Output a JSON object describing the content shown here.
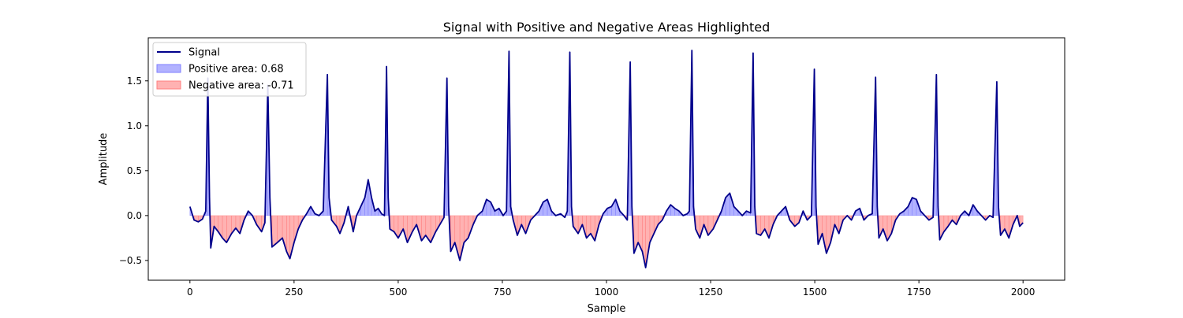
{
  "chart_data": {
    "type": "area",
    "title": "Signal with Positive and Negative Areas Highlighted",
    "xlabel": "Sample",
    "ylabel": "Amplitude",
    "xlim": [
      -100,
      2100
    ],
    "ylim": [
      -0.72,
      1.98
    ],
    "xticks": [
      0,
      250,
      500,
      750,
      1000,
      1250,
      1500,
      1750,
      2000
    ],
    "xtick_labels": [
      "0",
      "250",
      "500",
      "750",
      "1000",
      "1250",
      "1500",
      "1750",
      "2000"
    ],
    "yticks": [
      -0.5,
      0.0,
      0.5,
      1.0,
      1.5
    ],
    "ytick_labels": [
      "−0.5",
      "0.0",
      "0.5",
      "1.0",
      "1.5"
    ],
    "grid": false,
    "legend": {
      "location": "upper left",
      "entries": [
        {
          "label": "Signal",
          "kind": "line",
          "color": "#00008b"
        },
        {
          "label": "Positive area: 0.68",
          "kind": "patch",
          "fill": "#b2b2ff",
          "edge": "#7f7fff"
        },
        {
          "label": "Negative area: -0.71",
          "kind": "patch",
          "fill": "#ffb2b2",
          "edge": "#ff7f7f"
        }
      ]
    },
    "colors": {
      "signal": "#00008b",
      "positive_fill": "#0000ff",
      "negative_fill": "#ff0000",
      "fill_alpha": 0.3
    },
    "series": [
      {
        "name": "Signal",
        "peaks": [
          {
            "x": 43,
            "y": 1.53
          },
          {
            "x": 187,
            "y": 1.45
          },
          {
            "x": 330,
            "y": 1.57
          },
          {
            "x": 472,
            "y": 1.66
          },
          {
            "x": 617,
            "y": 1.53
          },
          {
            "x": 766,
            "y": 1.83
          },
          {
            "x": 912,
            "y": 1.82
          },
          {
            "x": 1057,
            "y": 1.71
          },
          {
            "x": 1205,
            "y": 1.84
          },
          {
            "x": 1352,
            "y": 1.81
          },
          {
            "x": 1499,
            "y": 1.63
          },
          {
            "x": 1646,
            "y": 1.54
          },
          {
            "x": 1792,
            "y": 1.57
          },
          {
            "x": 1937,
            "y": 1.49
          }
        ],
        "points": [
          [
            0,
            0.1
          ],
          [
            10,
            -0.05
          ],
          [
            20,
            -0.07
          ],
          [
            30,
            -0.04
          ],
          [
            38,
            0.05
          ],
          [
            43,
            1.53
          ],
          [
            47,
            0.2
          ],
          [
            50,
            -0.36
          ],
          [
            58,
            -0.12
          ],
          [
            68,
            -0.18
          ],
          [
            78,
            -0.25
          ],
          [
            88,
            -0.3
          ],
          [
            100,
            -0.2
          ],
          [
            110,
            -0.14
          ],
          [
            120,
            -0.2
          ],
          [
            130,
            -0.05
          ],
          [
            140,
            0.05
          ],
          [
            150,
            0.0
          ],
          [
            160,
            -0.1
          ],
          [
            172,
            -0.18
          ],
          [
            180,
            -0.08
          ],
          [
            187,
            1.45
          ],
          [
            192,
            0.2
          ],
          [
            197,
            -0.35
          ],
          [
            210,
            -0.3
          ],
          [
            222,
            -0.25
          ],
          [
            232,
            -0.4
          ],
          [
            240,
            -0.48
          ],
          [
            250,
            -0.3
          ],
          [
            260,
            -0.15
          ],
          [
            270,
            -0.05
          ],
          [
            280,
            0.02
          ],
          [
            290,
            0.1
          ],
          [
            300,
            0.02
          ],
          [
            310,
            0.0
          ],
          [
            320,
            0.05
          ],
          [
            330,
            1.57
          ],
          [
            334,
            0.2
          ],
          [
            340,
            -0.05
          ],
          [
            352,
            -0.12
          ],
          [
            360,
            -0.2
          ],
          [
            370,
            -0.08
          ],
          [
            380,
            0.1
          ],
          [
            392,
            -0.18
          ],
          [
            400,
            0.0
          ],
          [
            410,
            0.1
          ],
          [
            420,
            0.2
          ],
          [
            428,
            0.4
          ],
          [
            436,
            0.2
          ],
          [
            444,
            0.05
          ],
          [
            452,
            0.08
          ],
          [
            460,
            0.02
          ],
          [
            467,
            0.0
          ],
          [
            472,
            1.66
          ],
          [
            476,
            0.2
          ],
          [
            480,
            -0.15
          ],
          [
            490,
            -0.18
          ],
          [
            500,
            -0.25
          ],
          [
            512,
            -0.15
          ],
          [
            522,
            -0.3
          ],
          [
            534,
            -0.18
          ],
          [
            544,
            -0.1
          ],
          [
            556,
            -0.28
          ],
          [
            566,
            -0.22
          ],
          [
            578,
            -0.3
          ],
          [
            590,
            -0.18
          ],
          [
            600,
            -0.1
          ],
          [
            610,
            -0.02
          ],
          [
            617,
            1.53
          ],
          [
            621,
            0.1
          ],
          [
            626,
            -0.4
          ],
          [
            636,
            -0.3
          ],
          [
            648,
            -0.5
          ],
          [
            658,
            -0.3
          ],
          [
            668,
            -0.25
          ],
          [
            680,
            -0.1
          ],
          [
            690,
            0.0
          ],
          [
            702,
            0.05
          ],
          [
            712,
            0.18
          ],
          [
            722,
            0.15
          ],
          [
            732,
            0.05
          ],
          [
            742,
            0.08
          ],
          [
            752,
            0.0
          ],
          [
            760,
            0.05
          ],
          [
            766,
            1.83
          ],
          [
            770,
            0.1
          ],
          [
            776,
            -0.05
          ],
          [
            786,
            -0.22
          ],
          [
            796,
            -0.1
          ],
          [
            806,
            -0.2
          ],
          [
            818,
            -0.05
          ],
          [
            828,
            0.0
          ],
          [
            838,
            0.05
          ],
          [
            848,
            0.15
          ],
          [
            858,
            0.18
          ],
          [
            868,
            0.05
          ],
          [
            878,
            0.0
          ],
          [
            890,
            0.02
          ],
          [
            900,
            -0.02
          ],
          [
            906,
            0.05
          ],
          [
            912,
            1.82
          ],
          [
            916,
            0.1
          ],
          [
            920,
            -0.12
          ],
          [
            932,
            -0.2
          ],
          [
            942,
            -0.1
          ],
          [
            952,
            -0.25
          ],
          [
            962,
            -0.2
          ],
          [
            972,
            -0.28
          ],
          [
            982,
            -0.1
          ],
          [
            992,
            0.02
          ],
          [
            1002,
            0.08
          ],
          [
            1012,
            0.1
          ],
          [
            1022,
            0.18
          ],
          [
            1032,
            0.05
          ],
          [
            1042,
            0.0
          ],
          [
            1050,
            -0.05
          ],
          [
            1057,
            1.71
          ],
          [
            1061,
            0.1
          ],
          [
            1066,
            -0.42
          ],
          [
            1076,
            -0.3
          ],
          [
            1086,
            -0.4
          ],
          [
            1094,
            -0.58
          ],
          [
            1104,
            -0.3
          ],
          [
            1114,
            -0.2
          ],
          [
            1124,
            -0.1
          ],
          [
            1134,
            -0.05
          ],
          [
            1144,
            0.05
          ],
          [
            1154,
            0.12
          ],
          [
            1164,
            0.08
          ],
          [
            1174,
            0.05
          ],
          [
            1184,
            0.0
          ],
          [
            1194,
            0.02
          ],
          [
            1199,
            0.05
          ],
          [
            1205,
            1.84
          ],
          [
            1209,
            0.1
          ],
          [
            1214,
            -0.15
          ],
          [
            1224,
            -0.25
          ],
          [
            1234,
            -0.1
          ],
          [
            1244,
            -0.22
          ],
          [
            1256,
            -0.15
          ],
          [
            1266,
            -0.05
          ],
          [
            1276,
            0.05
          ],
          [
            1286,
            0.2
          ],
          [
            1296,
            0.25
          ],
          [
            1306,
            0.1
          ],
          [
            1316,
            0.05
          ],
          [
            1326,
            0.0
          ],
          [
            1336,
            0.05
          ],
          [
            1346,
            0.03
          ],
          [
            1352,
            1.81
          ],
          [
            1356,
            0.1
          ],
          [
            1360,
            -0.2
          ],
          [
            1370,
            -0.22
          ],
          [
            1380,
            -0.15
          ],
          [
            1390,
            -0.25
          ],
          [
            1400,
            -0.1
          ],
          [
            1410,
            0.0
          ],
          [
            1420,
            0.05
          ],
          [
            1430,
            0.1
          ],
          [
            1440,
            -0.05
          ],
          [
            1452,
            -0.12
          ],
          [
            1462,
            -0.08
          ],
          [
            1472,
            0.05
          ],
          [
            1482,
            -0.05
          ],
          [
            1492,
            0.0
          ],
          [
            1499,
            1.63
          ],
          [
            1503,
            0.1
          ],
          [
            1508,
            -0.32
          ],
          [
            1518,
            -0.2
          ],
          [
            1528,
            -0.42
          ],
          [
            1538,
            -0.3
          ],
          [
            1548,
            -0.1
          ],
          [
            1558,
            -0.2
          ],
          [
            1568,
            -0.05
          ],
          [
            1578,
            0.0
          ],
          [
            1588,
            -0.05
          ],
          [
            1598,
            0.05
          ],
          [
            1608,
            0.08
          ],
          [
            1618,
            -0.05
          ],
          [
            1628,
            0.0
          ],
          [
            1638,
            0.02
          ],
          [
            1646,
            1.54
          ],
          [
            1650,
            0.1
          ],
          [
            1654,
            -0.25
          ],
          [
            1664,
            -0.15
          ],
          [
            1674,
            -0.28
          ],
          [
            1684,
            -0.2
          ],
          [
            1694,
            -0.05
          ],
          [
            1704,
            0.02
          ],
          [
            1714,
            0.05
          ],
          [
            1724,
            0.1
          ],
          [
            1734,
            0.2
          ],
          [
            1744,
            0.18
          ],
          [
            1754,
            0.05
          ],
          [
            1764,
            0.0
          ],
          [
            1774,
            -0.05
          ],
          [
            1784,
            -0.02
          ],
          [
            1792,
            1.57
          ],
          [
            1796,
            0.1
          ],
          [
            1800,
            -0.27
          ],
          [
            1810,
            -0.18
          ],
          [
            1820,
            -0.12
          ],
          [
            1830,
            -0.05
          ],
          [
            1840,
            -0.1
          ],
          [
            1850,
            0.0
          ],
          [
            1860,
            0.05
          ],
          [
            1870,
            0.0
          ],
          [
            1880,
            0.12
          ],
          [
            1890,
            0.05
          ],
          [
            1900,
            0.0
          ],
          [
            1910,
            -0.05
          ],
          [
            1920,
            0.0
          ],
          [
            1928,
            -0.02
          ],
          [
            1937,
            1.49
          ],
          [
            1941,
            0.1
          ],
          [
            1946,
            -0.22
          ],
          [
            1956,
            -0.15
          ],
          [
            1966,
            -0.25
          ],
          [
            1976,
            -0.1
          ],
          [
            1986,
            0.0
          ],
          [
            1992,
            -0.12
          ],
          [
            2000,
            -0.08
          ]
        ]
      }
    ]
  }
}
